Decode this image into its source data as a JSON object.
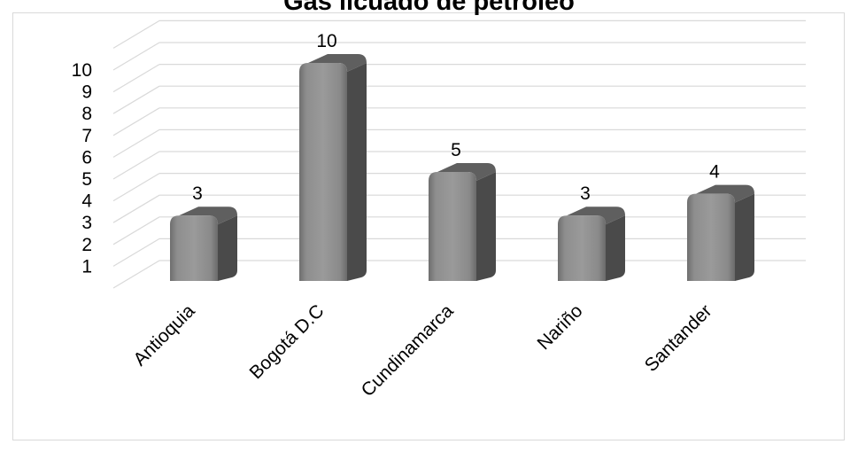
{
  "chart_data": {
    "type": "bar",
    "title": "Gas licuado de petróleo",
    "categories": [
      "Antioquia",
      "Bogotá D.C",
      "Cundinamarca",
      "Nariño",
      "Santander"
    ],
    "values": [
      3,
      10,
      5,
      3,
      4
    ],
    "ylim": [
      0,
      11
    ],
    "yticks": [
      "1",
      "2",
      "3",
      "4",
      "5",
      "6",
      "7",
      "8",
      "9",
      "10"
    ],
    "data_labels": [
      "3",
      "10",
      "5",
      "3",
      "4"
    ],
    "grid": true,
    "legend": "none",
    "bar_color": "#8c8c8c",
    "bar_top_color": "#5f5f5f",
    "bar_side_color": "#4a4a4a",
    "gridline_color": "#d9d9d9"
  }
}
